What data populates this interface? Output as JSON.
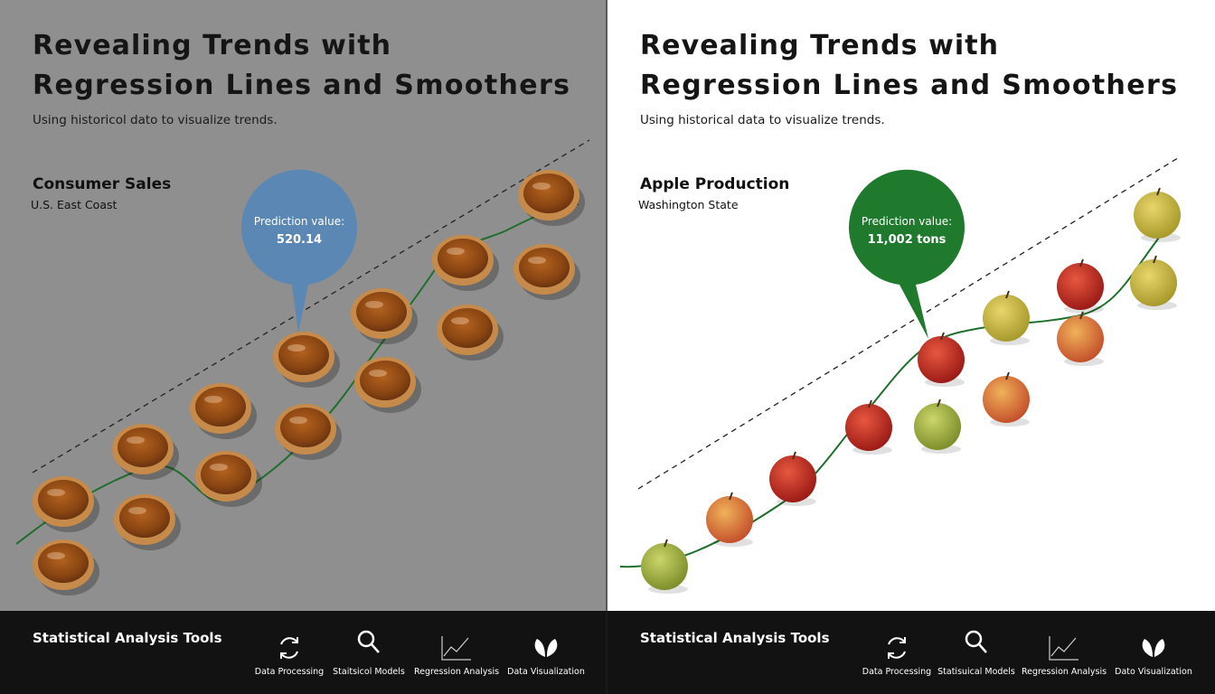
{
  "panels": [
    {
      "title_line1": "Revealing Trends with",
      "title_line2": "Regression Lines and Smoothers",
      "subtitle": "Using historicol dato to visualize trends.",
      "section_title": "Consumer Sales",
      "section_subtitle": "U.S. East Coast",
      "callout_label": "Prediction value:",
      "callout_value": "520.14",
      "footer_title": "Statistical Analysis Tools",
      "nav": [
        "Data Processing",
        "Staitsicol Models",
        "Regression Analysis",
        "Data Visualization"
      ]
    },
    {
      "title_line1": "Revealing Trends with",
      "title_line2": "Regression Lines and Smoothers",
      "subtitle": "Using historical data to visualize trends.",
      "section_title": "Apple Production",
      "section_subtitle": "Washington State",
      "callout_label": "Prediction value:",
      "callout_value": "11,002 tons",
      "footer_title": "Statistical Analysis Tools",
      "nav": [
        "Data Processing",
        "Statisuical Models",
        "Regression Analysis",
        "Dato Visualization"
      ]
    }
  ]
}
